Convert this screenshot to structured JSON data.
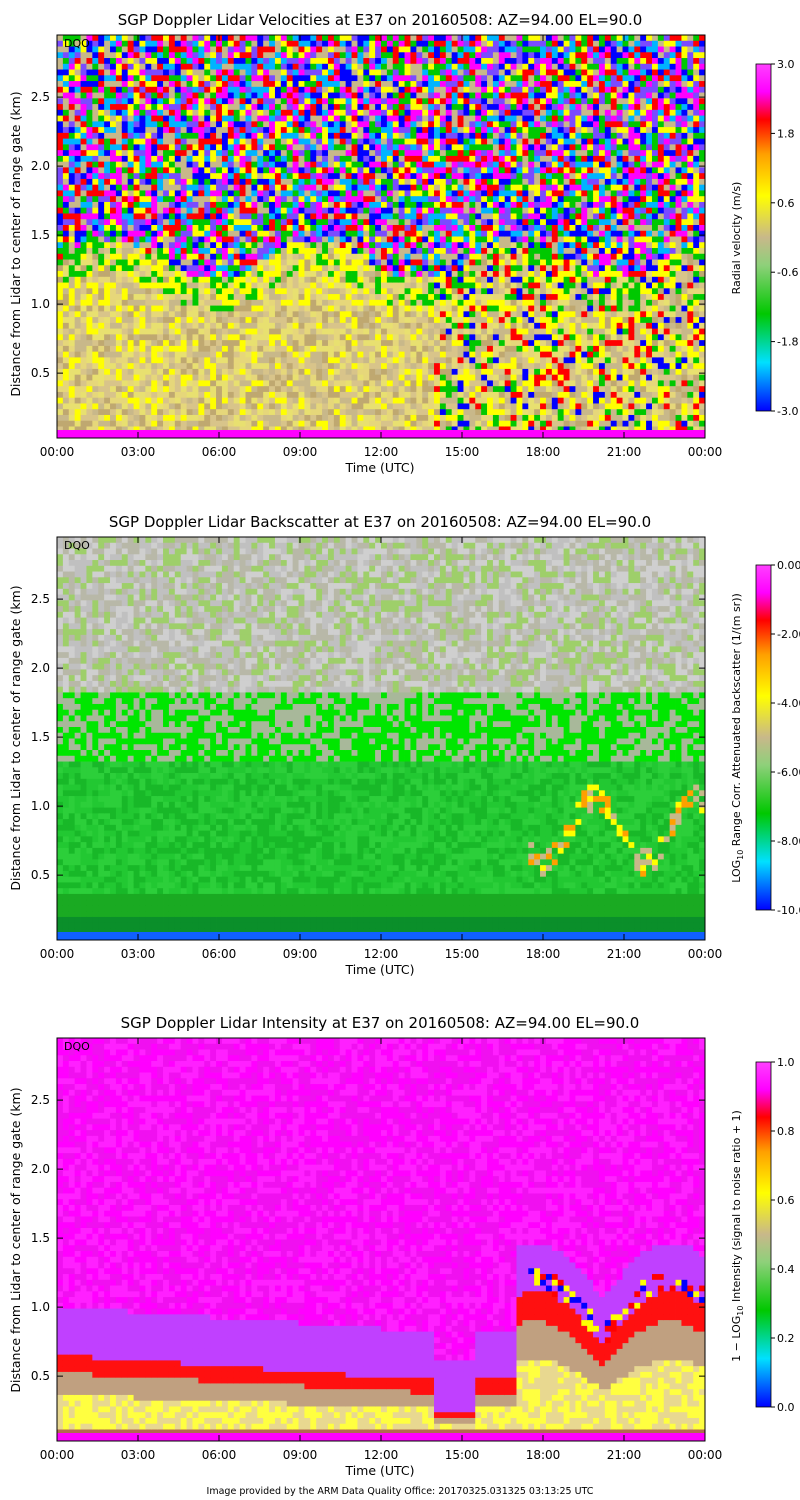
{
  "footer": "Image provided by the ARM Data Quality Office: 20170325.031325 03:13:25 UTC",
  "chart_data": [
    {
      "type": "heatmap",
      "title": "SGP Doppler Lidar Velocities at E37 on 20160508: AZ=94.00 EL=90.0",
      "xlabel": "Time (UTC)",
      "ylabel": "Distance from Lidar to center of range gate (km)",
      "x_ticks": [
        "00:00",
        "03:00",
        "06:00",
        "09:00",
        "12:00",
        "15:00",
        "18:00",
        "21:00",
        "00:00"
      ],
      "y_ticks": [
        "0.5",
        "1.0",
        "1.5",
        "2.0",
        "2.5"
      ],
      "ylim": [
        0.03,
        2.95
      ],
      "flag_label": "DQO",
      "colorbar": {
        "label": "Radial velocity (m/s)",
        "range": [
          -3.0,
          3.0
        ],
        "ticks": [
          "3.0",
          "1.8",
          "0.6",
          "-0.6",
          "-1.8",
          "-3.0"
        ]
      },
      "description_regions": {
        "low_layer_below_1.5km": "near 0 m/s (tan/yellow)",
        "upper_layer_above_1.5km": "noisy mixed values",
        "afternoon_15_24utc": "vertical streaks of up/down motion"
      }
    },
    {
      "type": "heatmap",
      "title": "SGP Doppler Lidar Backscatter at E37 on 20160508: AZ=94.00 EL=90.0",
      "xlabel": "Time (UTC)",
      "ylabel": "Distance from Lidar to center of range gate (km)",
      "x_ticks": [
        "00:00",
        "03:00",
        "06:00",
        "09:00",
        "12:00",
        "15:00",
        "18:00",
        "21:00",
        "00:00"
      ],
      "y_ticks": [
        "0.5",
        "1.0",
        "1.5",
        "2.0",
        "2.5"
      ],
      "ylim": [
        0.03,
        2.95
      ],
      "flag_label": "DQO",
      "colorbar": {
        "label_main": "LOG",
        "label_sub": "10",
        "label_rest": " Range Corr. Attenuated backscatter (1/(m sr))",
        "range": [
          -10.0,
          0.0
        ],
        "ticks": [
          "0.00",
          "-2.00",
          "-4.00",
          "-6.00",
          "-8.00",
          "-10.00"
        ]
      }
    },
    {
      "type": "heatmap",
      "title": "SGP Doppler Lidar Intensity at E37 on 20160508: AZ=94.00 EL=90.0",
      "xlabel": "Time (UTC)",
      "ylabel": "Distance from Lidar to center of range gate (km)",
      "x_ticks": [
        "00:00",
        "03:00",
        "06:00",
        "09:00",
        "12:00",
        "15:00",
        "18:00",
        "21:00",
        "00:00"
      ],
      "y_ticks": [
        "0.5",
        "1.0",
        "1.5",
        "2.0",
        "2.5"
      ],
      "ylim": [
        0.03,
        2.95
      ],
      "flag_label": "DQO",
      "colorbar": {
        "label_main": "1 − LOG",
        "label_sub": "10",
        "label_rest": " Intensity (signal to noise ratio + 1)",
        "range": [
          0.0,
          1.0
        ],
        "ticks": [
          "1.0",
          "0.8",
          "0.6",
          "0.4",
          "0.2",
          "0.0"
        ]
      }
    }
  ]
}
